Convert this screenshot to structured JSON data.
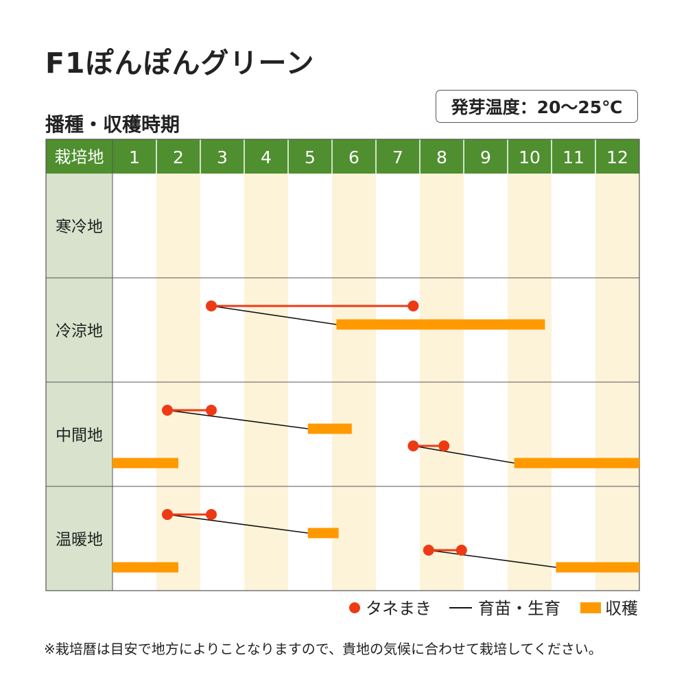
{
  "title": "F1ぽんぽんグリーン",
  "subtitle": "播種・収穫時期",
  "germination": "発芽温度：20～25℃",
  "footnote": "※栽培暦は目安で地方によりことなりますので、貴地の気候に合わせて栽培してください。",
  "colors": {
    "header_green": "#4f8f2f",
    "region_cell": "#d8e2cc",
    "alt_month": "#fdf3d9",
    "grid": "#555555",
    "sowing": "#ee3a14",
    "growing": "#111111",
    "harvest": "#ff9900"
  },
  "chart_data": {
    "type": "gantt",
    "header_label": "栽培地",
    "months": [
      "1",
      "2",
      "3",
      "4",
      "5",
      "6",
      "7",
      "8",
      "9",
      "10",
      "11",
      "12"
    ],
    "legend": {
      "sowing": "タネまき",
      "growing": "育苗・生育",
      "harvest": "収穫"
    },
    "legend_placement": "bottom-right",
    "regions": [
      {
        "name": "寒冷地",
        "tracks": []
      },
      {
        "name": "冷涼地",
        "tracks": [
          {
            "sowing": [
              3.25,
              7.85
            ],
            "growing": [
              3.25,
              6.1
            ],
            "harvest": [
              6.1,
              10.85
            ]
          }
        ]
      },
      {
        "name": "中間地",
        "tracks": [
          {
            "sowing": [
              2.25,
              3.25
            ],
            "growing": [
              2.25,
              5.45
            ],
            "harvest": [
              5.45,
              6.45
            ]
          },
          {
            "sowing": [
              7.85,
              8.55
            ],
            "growing": [
              7.85,
              10.15
            ],
            "harvest": [
              10.15,
              13.0
            ]
          },
          {
            "harvest": [
              1.0,
              2.5
            ]
          }
        ]
      },
      {
        "name": "温暖地",
        "tracks": [
          {
            "sowing": [
              2.25,
              3.25
            ],
            "growing": [
              2.25,
              5.45
            ],
            "harvest": [
              5.45,
              6.15
            ]
          },
          {
            "sowing": [
              8.2,
              8.95
            ],
            "growing": [
              8.2,
              11.1
            ],
            "harvest": [
              11.1,
              13.0
            ]
          },
          {
            "harvest": [
              1.0,
              2.5
            ]
          }
        ]
      }
    ]
  }
}
